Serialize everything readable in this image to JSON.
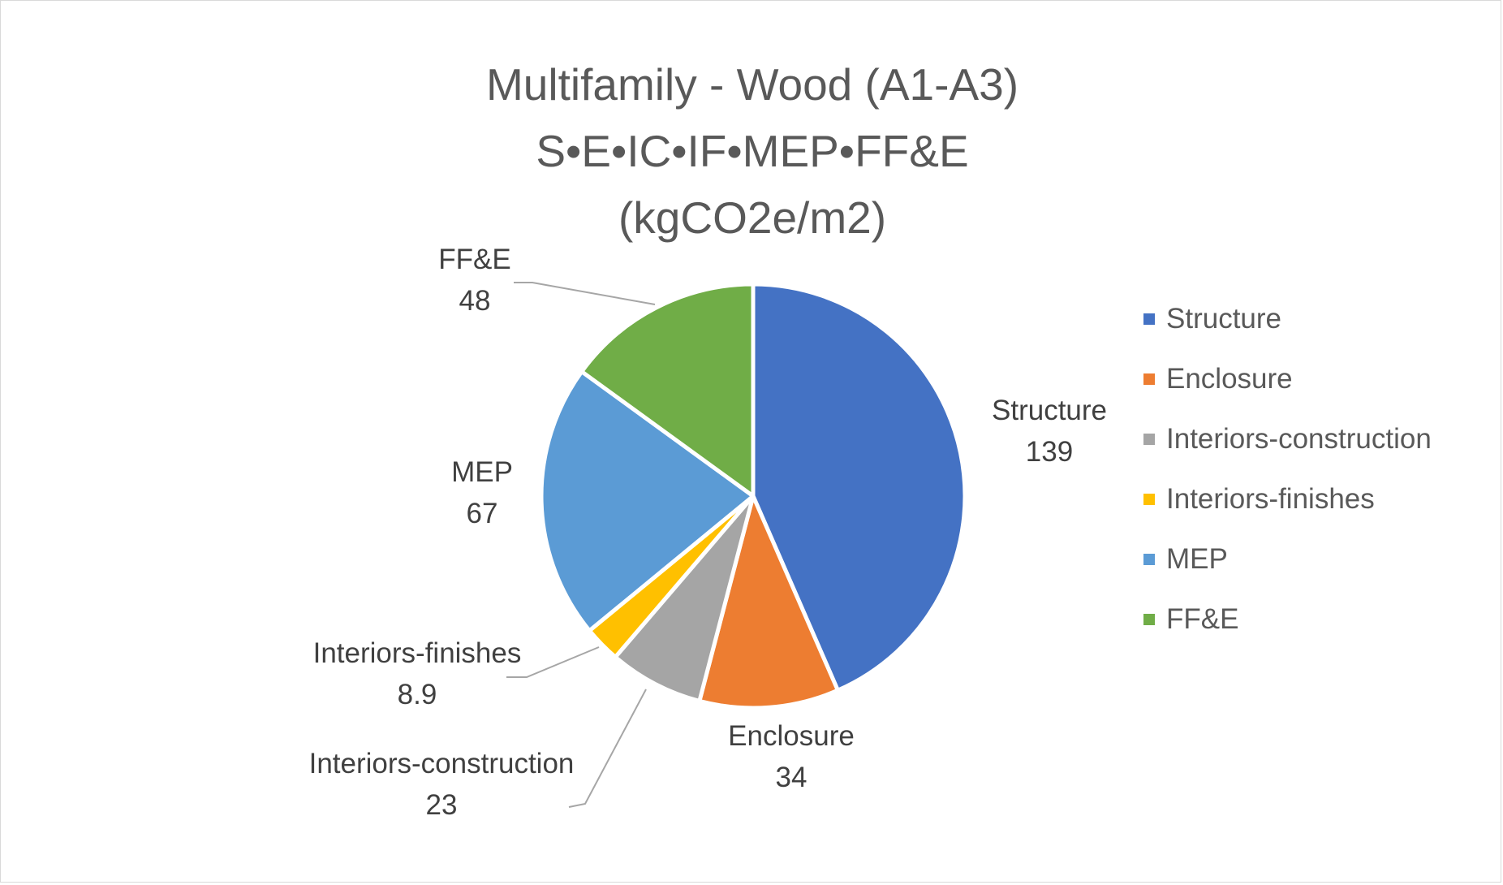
{
  "chart_data": {
    "type": "pie",
    "title_lines": [
      "Multifamily - Wood (A1-A3)",
      "S•E•IC•IF•MEP•FF&E",
      "(kgCO2e/m2)"
    ],
    "categories": [
      "Structure",
      "Enclosure",
      "Interiors-construction",
      "Interiors-finishes",
      "MEP",
      "FF&E"
    ],
    "values": [
      139,
      34,
      23,
      8.9,
      67,
      48
    ],
    "value_labels": [
      "139",
      "34",
      "23",
      "8.9",
      "67",
      "48"
    ],
    "colors": [
      "#4472C4",
      "#ED7D31",
      "#A5A5A5",
      "#FFC000",
      "#5B9BD5",
      "#70AD47"
    ],
    "legend_position": "right",
    "data_labels": "category name and value"
  }
}
